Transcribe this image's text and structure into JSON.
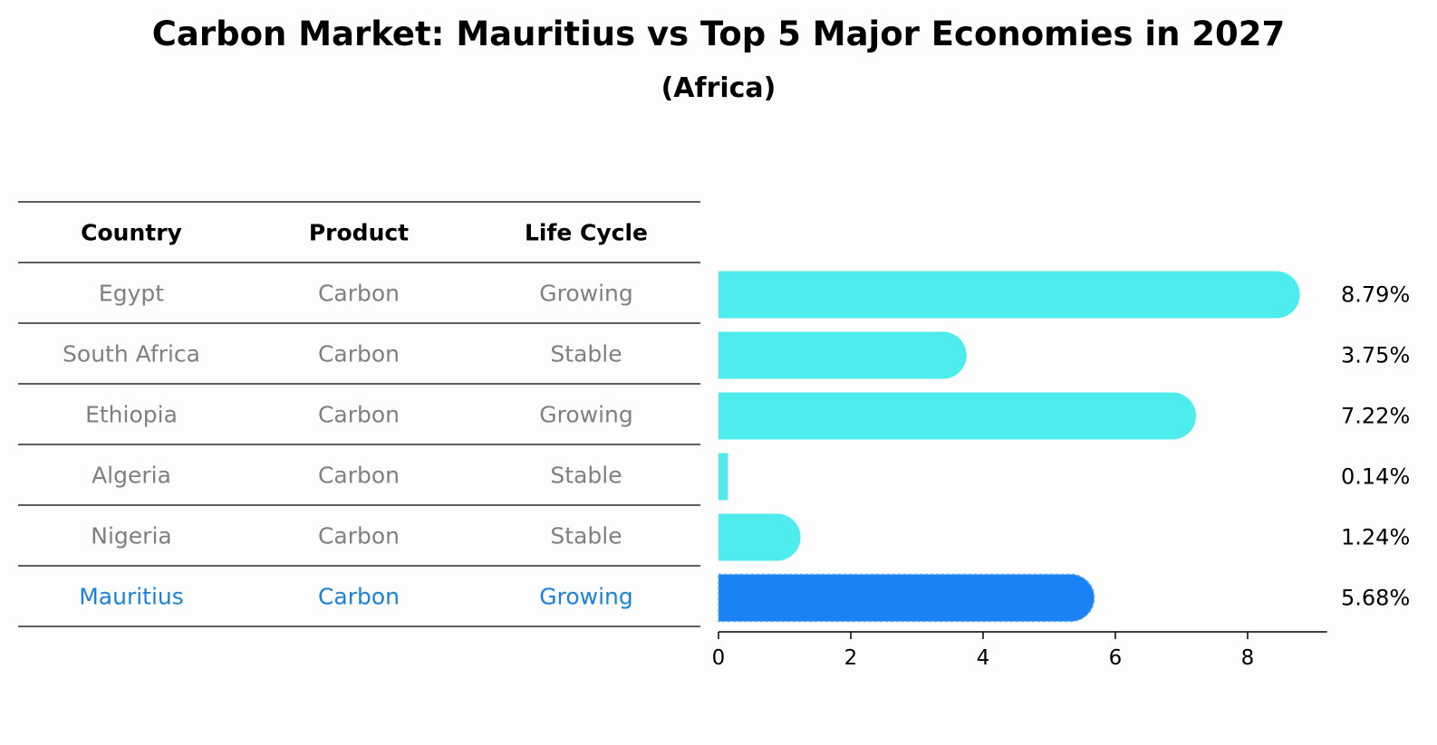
{
  "title": "Carbon Market: Mauritius vs Top 5 Major Economies in 2027",
  "subtitle": "(Africa)",
  "table": {
    "headers": [
      "Country",
      "Product",
      "Life Cycle"
    ],
    "rows": [
      {
        "country": "Egypt",
        "product": "Carbon",
        "life_cycle": "Growing",
        "highlight": false
      },
      {
        "country": "South Africa",
        "product": "Carbon",
        "life_cycle": "Stable",
        "highlight": false
      },
      {
        "country": "Ethiopia",
        "product": "Carbon",
        "life_cycle": "Growing",
        "highlight": false
      },
      {
        "country": "Algeria",
        "product": "Carbon",
        "life_cycle": "Stable",
        "highlight": false
      },
      {
        "country": "Nigeria",
        "product": "Carbon",
        "life_cycle": "Stable",
        "highlight": false
      },
      {
        "country": "Mauritius",
        "product": "Carbon",
        "life_cycle": "Growing",
        "highlight": true
      }
    ]
  },
  "chart_data": {
    "type": "bar",
    "orientation": "horizontal",
    "categories": [
      "Egypt",
      "South Africa",
      "Ethiopia",
      "Algeria",
      "Nigeria",
      "Mauritius"
    ],
    "values": [
      8.79,
      3.75,
      7.22,
      0.14,
      1.24,
      5.68
    ],
    "value_labels": [
      "8.79%",
      "3.75%",
      "7.22%",
      "0.14%",
      "1.24%",
      "5.68%"
    ],
    "xlim": [
      0,
      9.2
    ],
    "xticks": [
      0,
      2,
      4,
      6,
      8
    ],
    "xlabel": "",
    "ylabel": "",
    "grid": false,
    "colors": {
      "default": "#4eecec",
      "highlight": "#1a82f4"
    },
    "highlight_index": 5
  },
  "colors": {
    "highlight_text": "#1a82d8",
    "muted_text": "#808080"
  }
}
